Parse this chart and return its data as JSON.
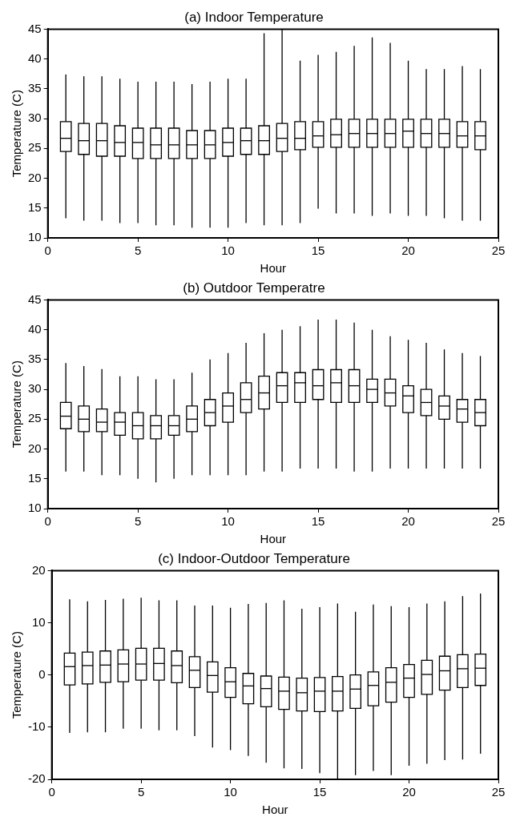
{
  "chart_data": [
    {
      "type": "box",
      "title": "(a) Indoor Temperature",
      "xlabel": "Hour",
      "ylabel": "Temperature (C)",
      "xlim": [
        0,
        25
      ],
      "xticks": [
        0,
        5,
        10,
        15,
        20,
        25
      ],
      "ylim": [
        10,
        45
      ],
      "yticks": [
        10,
        15,
        20,
        25,
        30,
        35,
        40,
        45
      ],
      "series": [
        {
          "color": "#000000",
          "x": [
            1,
            2,
            3,
            4,
            5,
            6,
            7,
            8,
            9,
            10,
            11,
            12,
            13,
            14,
            15,
            16,
            17,
            18,
            19,
            20,
            21,
            22,
            23,
            24
          ],
          "boxes": [
            {
              "low": 13.3,
              "q1": 24.5,
              "median": 26.7,
              "q3": 29.5,
              "high": 37.4
            },
            {
              "low": 12.9,
              "q1": 24.0,
              "median": 26.3,
              "q3": 29.2,
              "high": 37.1
            },
            {
              "low": 12.9,
              "q1": 23.7,
              "median": 26.3,
              "q3": 29.2,
              "high": 37.1
            },
            {
              "low": 12.5,
              "q1": 23.7,
              "median": 26.0,
              "q3": 28.8,
              "high": 36.7
            },
            {
              "low": 12.5,
              "q1": 23.3,
              "median": 26.0,
              "q3": 28.4,
              "high": 36.2
            },
            {
              "low": 12.1,
              "q1": 23.3,
              "median": 25.6,
              "q3": 28.4,
              "high": 36.2
            },
            {
              "low": 12.1,
              "q1": 23.3,
              "median": 25.6,
              "q3": 28.4,
              "high": 36.2
            },
            {
              "low": 11.7,
              "q1": 23.3,
              "median": 25.6,
              "q3": 28.0,
              "high": 35.8
            },
            {
              "low": 11.7,
              "q1": 23.3,
              "median": 25.6,
              "q3": 28.0,
              "high": 36.2
            },
            {
              "low": 11.7,
              "q1": 23.7,
              "median": 26.0,
              "q3": 28.4,
              "high": 36.7
            },
            {
              "low": 12.5,
              "q1": 24.0,
              "median": 26.3,
              "q3": 28.4,
              "high": 36.7
            },
            {
              "low": 12.1,
              "q1": 24.0,
              "median": 26.3,
              "q3": 28.8,
              "high": 44.3
            },
            {
              "low": 12.1,
              "q1": 24.5,
              "median": 26.7,
              "q3": 29.2,
              "high": 45
            },
            {
              "low": 12.5,
              "q1": 24.8,
              "median": 26.7,
              "q3": 29.5,
              "high": 39.7
            },
            {
              "low": 14.9,
              "q1": 25.2,
              "median": 27.1,
              "q3": 29.5,
              "high": 40.7
            },
            {
              "low": 14.1,
              "q1": 25.2,
              "median": 27.3,
              "q3": 29.9,
              "high": 41.2
            },
            {
              "low": 14.1,
              "q1": 25.2,
              "median": 27.5,
              "q3": 29.9,
              "high": 42.2
            },
            {
              "low": 13.7,
              "q1": 25.2,
              "median": 27.5,
              "q3": 29.9,
              "high": 43.6
            },
            {
              "low": 14.1,
              "q1": 25.2,
              "median": 27.5,
              "q3": 29.9,
              "high": 42.7
            },
            {
              "low": 13.7,
              "q1": 25.2,
              "median": 27.9,
              "q3": 29.9,
              "high": 39.7
            },
            {
              "low": 13.7,
              "q1": 25.2,
              "median": 27.5,
              "q3": 29.9,
              "high": 38.3
            },
            {
              "low": 13.3,
              "q1": 25.2,
              "median": 27.5,
              "q3": 29.9,
              "high": 38.3
            },
            {
              "low": 12.9,
              "q1": 25.2,
              "median": 27.1,
              "q3": 29.5,
              "high": 38.8
            },
            {
              "low": 12.9,
              "q1": 24.8,
              "median": 27.1,
              "q3": 29.5,
              "high": 38.3
            }
          ]
        }
      ]
    },
    {
      "type": "box",
      "title": "(b) Outdoor Temperatre",
      "xlabel": "Hour",
      "ylabel": "Temperature (C)",
      "xlim": [
        0,
        25
      ],
      "xticks": [
        0,
        5,
        10,
        15,
        20,
        25
      ],
      "ylim": [
        10,
        45
      ],
      "yticks": [
        10,
        15,
        20,
        25,
        30,
        35,
        40,
        45
      ],
      "series": [
        {
          "color": "#000000",
          "x": [
            1,
            2,
            3,
            4,
            5,
            6,
            7,
            8,
            9,
            10,
            11,
            12,
            13,
            14,
            15,
            16,
            17,
            18,
            19,
            20,
            21,
            22,
            23,
            24
          ],
          "boxes": [
            {
              "low": 16.2,
              "q1": 23.4,
              "median": 25.5,
              "q3": 27.8,
              "high": 34.4
            },
            {
              "low": 16.2,
              "q1": 22.9,
              "median": 25.0,
              "q3": 27.2,
              "high": 33.9
            },
            {
              "low": 15.6,
              "q1": 22.9,
              "median": 24.5,
              "q3": 26.7,
              "high": 33.4
            },
            {
              "low": 15.6,
              "q1": 22.3,
              "median": 24.5,
              "q3": 26.1,
              "high": 32.2
            },
            {
              "low": 15.0,
              "q1": 21.7,
              "median": 23.9,
              "q3": 26.1,
              "high": 32.2
            },
            {
              "low": 14.4,
              "q1": 21.7,
              "median": 23.9,
              "q3": 25.6,
              "high": 31.7
            },
            {
              "low": 15.0,
              "q1": 22.3,
              "median": 23.9,
              "q3": 25.6,
              "high": 31.7
            },
            {
              "low": 15.6,
              "q1": 22.9,
              "median": 25.0,
              "q3": 27.2,
              "high": 32.8
            },
            {
              "low": 15.6,
              "q1": 23.9,
              "median": 26.1,
              "q3": 28.3,
              "high": 35.0
            },
            {
              "low": 15.6,
              "q1": 24.5,
              "median": 27.2,
              "q3": 29.4,
              "high": 36.1
            },
            {
              "low": 15.6,
              "q1": 26.1,
              "median": 28.3,
              "q3": 31.1,
              "high": 37.8
            },
            {
              "low": 16.2,
              "q1": 26.7,
              "median": 29.4,
              "q3": 32.2,
              "high": 39.4
            },
            {
              "low": 16.2,
              "q1": 27.8,
              "median": 30.6,
              "q3": 32.8,
              "high": 40.0
            },
            {
              "low": 16.7,
              "q1": 27.8,
              "median": 31.1,
              "q3": 32.8,
              "high": 40.6
            },
            {
              "low": 16.7,
              "q1": 28.3,
              "median": 30.6,
              "q3": 33.3,
              "high": 41.7
            },
            {
              "low": 16.7,
              "q1": 27.8,
              "median": 31.1,
              "q3": 33.3,
              "high": 41.7
            },
            {
              "low": 16.2,
              "q1": 27.8,
              "median": 30.6,
              "q3": 33.3,
              "high": 41.2
            },
            {
              "low": 16.2,
              "q1": 27.8,
              "median": 30.0,
              "q3": 31.7,
              "high": 40.0
            },
            {
              "low": 16.7,
              "q1": 27.2,
              "median": 29.4,
              "q3": 31.7,
              "high": 38.9
            },
            {
              "low": 16.7,
              "q1": 26.1,
              "median": 28.9,
              "q3": 30.6,
              "high": 38.3
            },
            {
              "low": 16.7,
              "q1": 25.6,
              "median": 27.8,
              "q3": 30.0,
              "high": 37.8
            },
            {
              "low": 16.7,
              "q1": 25.0,
              "median": 27.2,
              "q3": 28.9,
              "high": 36.7
            },
            {
              "low": 16.7,
              "q1": 24.5,
              "median": 26.7,
              "q3": 28.3,
              "high": 36.1
            },
            {
              "low": 16.7,
              "q1": 23.9,
              "median": 26.1,
              "q3": 28.3,
              "high": 35.6
            }
          ]
        }
      ]
    },
    {
      "type": "box",
      "title": "(c) Indoor-Outdoor Temperature",
      "xlabel": "Hour",
      "ylabel": "Temperature (C)",
      "xlim": [
        0,
        25
      ],
      "xticks": [
        0,
        5,
        10,
        15,
        20,
        25
      ],
      "ylim": [
        -20,
        20
      ],
      "yticks": [
        -20,
        -10,
        0,
        10,
        20
      ],
      "series": [
        {
          "color": "#000000",
          "x": [
            1,
            2,
            3,
            4,
            5,
            6,
            7,
            8,
            9,
            10,
            11,
            12,
            13,
            14,
            15,
            16,
            17,
            18,
            19,
            20,
            21,
            22,
            23,
            24
          ],
          "boxes": [
            {
              "low": -11.1,
              "q1": -1.9,
              "median": 1.6,
              "q3": 4.2,
              "high": 14.5
            },
            {
              "low": -11.0,
              "q1": -1.7,
              "median": 1.8,
              "q3": 4.4,
              "high": 14.1
            },
            {
              "low": -11.0,
              "q1": -1.4,
              "median": 1.9,
              "q3": 4.6,
              "high": 14.4
            },
            {
              "low": -10.3,
              "q1": -1.3,
              "median": 2.1,
              "q3": 4.8,
              "high": 14.6
            },
            {
              "low": -10.3,
              "q1": -1.0,
              "median": 2.1,
              "q3": 5.1,
              "high": 14.8
            },
            {
              "low": -10.6,
              "q1": -1.0,
              "median": 2.2,
              "q3": 5.1,
              "high": 14.3
            },
            {
              "low": -10.6,
              "q1": -1.5,
              "median": 1.8,
              "q3": 4.6,
              "high": 14.3
            },
            {
              "low": -11.7,
              "q1": -2.4,
              "median": 0.9,
              "q3": 3.5,
              "high": 13.3
            },
            {
              "low": -13.9,
              "q1": -3.3,
              "median": -0.1,
              "q3": 2.5,
              "high": 13.3
            },
            {
              "low": -14.4,
              "q1": -4.3,
              "median": -1.3,
              "q3": 1.4,
              "high": 12.9
            },
            {
              "low": -15.5,
              "q1": -5.5,
              "median": -2.1,
              "q3": 0.3,
              "high": 13.6
            },
            {
              "low": -16.8,
              "q1": -6.1,
              "median": -2.6,
              "q3": -0.2,
              "high": 13.8
            },
            {
              "low": -17.9,
              "q1": -6.6,
              "median": -3.1,
              "q3": -0.4,
              "high": 14.3
            },
            {
              "low": -18.0,
              "q1": -6.9,
              "median": -3.4,
              "q3": -0.6,
              "high": 12.7
            },
            {
              "low": -18.8,
              "q1": -7.0,
              "median": -3.1,
              "q3": -0.5,
              "high": 13.0
            },
            {
              "low": -20,
              "q1": -6.9,
              "median": -3.1,
              "q3": -0.3,
              "high": 13.7
            },
            {
              "low": -19.2,
              "q1": -6.4,
              "median": -2.7,
              "q3": 0.0,
              "high": 12.1
            },
            {
              "low": -18.4,
              "q1": -5.9,
              "median": -2.0,
              "q3": 0.6,
              "high": 13.5
            },
            {
              "low": -19.2,
              "q1": -5.2,
              "median": -1.4,
              "q3": 1.4,
              "high": 13.2
            },
            {
              "low": -17.4,
              "q1": -4.3,
              "median": -0.6,
              "q3": 2.0,
              "high": 13.0
            },
            {
              "low": -17.0,
              "q1": -3.7,
              "median": 0.1,
              "q3": 2.8,
              "high": 13.7
            },
            {
              "low": -16.3,
              "q1": -2.9,
              "median": 0.8,
              "q3": 3.6,
              "high": 14.1
            },
            {
              "low": -16.2,
              "q1": -2.4,
              "median": 1.2,
              "q3": 3.9,
              "high": 15.1
            },
            {
              "low": -15.1,
              "q1": -2.0,
              "median": 1.3,
              "q3": 4.0,
              "high": 15.6
            }
          ]
        }
      ]
    }
  ]
}
